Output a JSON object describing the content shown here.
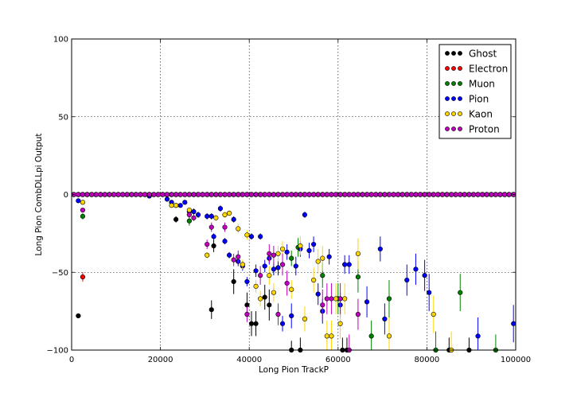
{
  "chart_data": {
    "type": "scatter",
    "xlabel": "Long Pion TrackP",
    "ylabel": "Long Pion CombDLLpi Output",
    "xlim": [
      0,
      100000
    ],
    "ylim": [
      -100,
      100
    ],
    "xticks": [
      0,
      20000,
      40000,
      60000,
      80000,
      100000
    ],
    "yticks": [
      -100,
      -50,
      0,
      50,
      100
    ],
    "xtick_labels": [
      "0",
      "20000",
      "40000",
      "60000",
      "80000",
      "100000"
    ],
    "ytick_labels": [
      "−100",
      "−50",
      "0",
      "50",
      "100"
    ],
    "grid": true,
    "legend_position": "top-right",
    "zero_line": {
      "x_start": 0,
      "x_end": 100000,
      "step": 1000,
      "y": 0
    },
    "series": [
      {
        "name": "Ghost",
        "color": "#000000",
        "points": [
          [
            1500,
            -78,
            0
          ],
          [
            23500,
            -16,
            2
          ],
          [
            31500,
            -74,
            6
          ],
          [
            32000,
            -33,
            4
          ],
          [
            36500,
            -56,
            8
          ],
          [
            39500,
            -71,
            8
          ],
          [
            40500,
            -83,
            8
          ],
          [
            41500,
            -83,
            8
          ],
          [
            43500,
            -66,
            8
          ],
          [
            44500,
            -71,
            10
          ],
          [
            49500,
            -100,
            6
          ],
          [
            51500,
            -100,
            8
          ],
          [
            61000,
            -100,
            8
          ],
          [
            62000,
            -100,
            8
          ],
          [
            85000,
            -100,
            8
          ],
          [
            89500,
            -100,
            8
          ]
        ]
      },
      {
        "name": "Electron",
        "color": "#ff0000",
        "points": [
          [
            2500,
            -53,
            3
          ]
        ]
      },
      {
        "name": "Muon",
        "color": "#008000",
        "points": [
          [
            2500,
            -14,
            2
          ],
          [
            26500,
            -17,
            3
          ],
          [
            49500,
            -41,
            5
          ],
          [
            51000,
            -34,
            6
          ],
          [
            56500,
            -52,
            8
          ],
          [
            60000,
            -67,
            10
          ],
          [
            64500,
            -53,
            10
          ],
          [
            67500,
            -91,
            10
          ],
          [
            71500,
            -67,
            12
          ],
          [
            82000,
            -100,
            12
          ],
          [
            87500,
            -63,
            12
          ],
          [
            95500,
            -100,
            10
          ]
        ]
      },
      {
        "name": "Pion",
        "color": "#0000ff",
        "points": [
          [
            1500,
            -4,
            1
          ],
          [
            17500,
            -1,
            1
          ],
          [
            21500,
            -3,
            1
          ],
          [
            22500,
            -5,
            1
          ],
          [
            23500,
            -7,
            1
          ],
          [
            24500,
            -7,
            1
          ],
          [
            25500,
            -5,
            1
          ],
          [
            26500,
            -11,
            2
          ],
          [
            27500,
            -11,
            2
          ],
          [
            28500,
            -13,
            2
          ],
          [
            30500,
            -14,
            2
          ],
          [
            31500,
            -14,
            2
          ],
          [
            32000,
            -27,
            2
          ],
          [
            33500,
            -9,
            2
          ],
          [
            34500,
            -30,
            2
          ],
          [
            35500,
            -39,
            2
          ],
          [
            36500,
            -16,
            2
          ],
          [
            37500,
            -43,
            3
          ],
          [
            38500,
            -46,
            3
          ],
          [
            39500,
            -56,
            3
          ],
          [
            40500,
            -27,
            2
          ],
          [
            41500,
            -49,
            4
          ],
          [
            42500,
            -27,
            2
          ],
          [
            43500,
            -46,
            4
          ],
          [
            44500,
            -41,
            4
          ],
          [
            45500,
            -48,
            4
          ],
          [
            46500,
            -47,
            5
          ],
          [
            47500,
            -83,
            5
          ],
          [
            48500,
            -37,
            5
          ],
          [
            49500,
            -78,
            8
          ],
          [
            50500,
            -46,
            6
          ],
          [
            51500,
            -35,
            5
          ],
          [
            52500,
            -13,
            2
          ],
          [
            53500,
            -36,
            5
          ],
          [
            54500,
            -32,
            5
          ],
          [
            55500,
            -64,
            7
          ],
          [
            56500,
            -75,
            8
          ],
          [
            58000,
            -40,
            5
          ],
          [
            60500,
            -71,
            8
          ],
          [
            61500,
            -45,
            6
          ],
          [
            62500,
            -45,
            6
          ],
          [
            66500,
            -69,
            10
          ],
          [
            69500,
            -35,
            8
          ],
          [
            70500,
            -80,
            10
          ],
          [
            75500,
            -55,
            10
          ],
          [
            77500,
            -48,
            10
          ],
          [
            79500,
            -52,
            10
          ],
          [
            80500,
            -63,
            12
          ],
          [
            91500,
            -91,
            12
          ],
          [
            99500,
            -83,
            12
          ]
        ]
      },
      {
        "name": "Kaon",
        "color": "#ffd700",
        "points": [
          [
            2500,
            -5,
            1
          ],
          [
            22500,
            -7,
            1
          ],
          [
            23500,
            -7,
            1
          ],
          [
            26500,
            -10,
            2
          ],
          [
            30500,
            -39,
            2
          ],
          [
            32500,
            -15,
            2
          ],
          [
            34500,
            -13,
            2
          ],
          [
            35500,
            -12,
            2
          ],
          [
            37500,
            -22,
            3
          ],
          [
            38500,
            -45,
            3
          ],
          [
            39500,
            -26,
            3
          ],
          [
            41500,
            -59,
            4
          ],
          [
            42500,
            -67,
            5
          ],
          [
            44500,
            -52,
            6
          ],
          [
            45500,
            -63,
            6
          ],
          [
            46500,
            -38,
            5
          ],
          [
            47500,
            -35,
            5
          ],
          [
            49500,
            -61,
            6
          ],
          [
            51500,
            -33,
            6
          ],
          [
            52500,
            -80,
            8
          ],
          [
            54500,
            -55,
            8
          ],
          [
            55500,
            -43,
            8
          ],
          [
            56500,
            -41,
            8
          ],
          [
            57500,
            -91,
            10
          ],
          [
            58500,
            -91,
            10
          ],
          [
            59500,
            -67,
            10
          ],
          [
            60500,
            -83,
            10
          ],
          [
            61500,
            -67,
            10
          ],
          [
            64500,
            -38,
            10
          ],
          [
            71500,
            -91,
            12
          ],
          [
            81500,
            -77,
            12
          ],
          [
            85500,
            -100,
            12
          ]
        ]
      },
      {
        "name": "Proton",
        "color": "#bf00bf",
        "points": [
          [
            1500,
            0,
            1
          ],
          [
            2500,
            -10,
            1
          ],
          [
            26500,
            -13,
            2
          ],
          [
            27500,
            -15,
            2
          ],
          [
            30500,
            -32,
            3
          ],
          [
            31500,
            -21,
            3
          ],
          [
            34500,
            -21,
            3
          ],
          [
            36500,
            -42,
            4
          ],
          [
            37500,
            -40,
            4
          ],
          [
            39500,
            -77,
            5
          ],
          [
            42500,
            -52,
            6
          ],
          [
            44500,
            -38,
            6
          ],
          [
            45500,
            -39,
            6
          ],
          [
            46500,
            -77,
            7
          ],
          [
            47500,
            -45,
            7
          ],
          [
            48500,
            -57,
            8
          ],
          [
            56500,
            -71,
            10
          ],
          [
            57500,
            -67,
            10
          ],
          [
            58500,
            -67,
            10
          ],
          [
            60500,
            -67,
            10
          ],
          [
            62500,
            -100,
            10
          ],
          [
            64500,
            -77,
            10
          ]
        ]
      }
    ]
  }
}
